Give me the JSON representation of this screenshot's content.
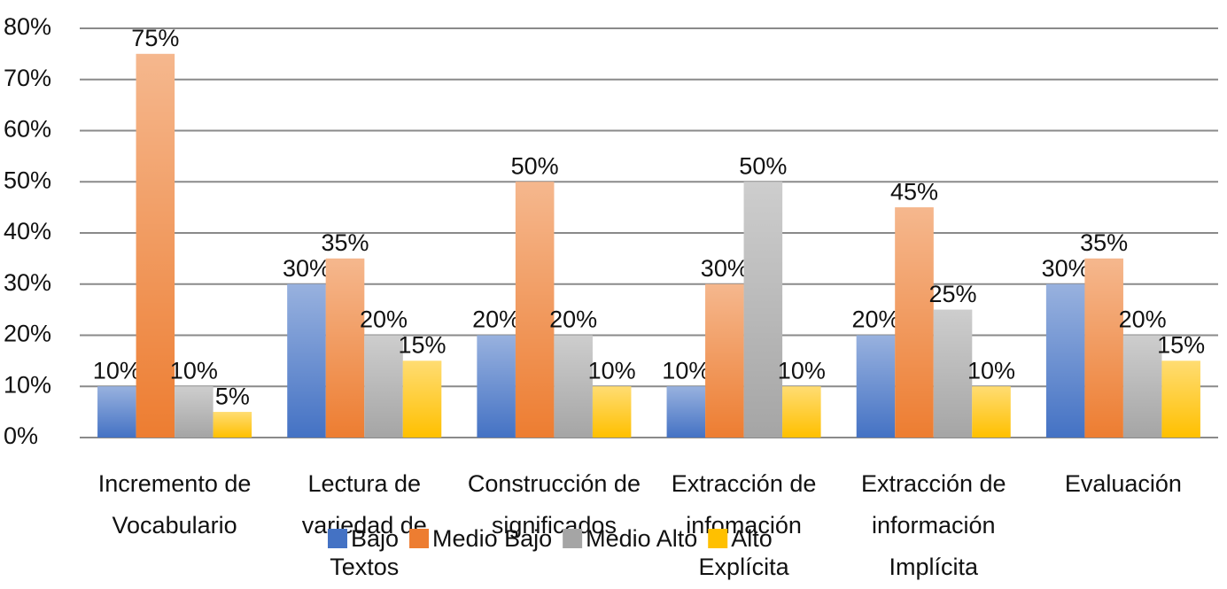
{
  "chart_data": {
    "type": "bar",
    "categories": [
      "Incremento de Vocabulario",
      "Lectura de variedad de Textos",
      "Construcción de significados",
      "Extracción de infomación Explícita",
      "Extracción de información Implícita",
      "Evaluación"
    ],
    "series": [
      {
        "name": "Bajo",
        "color": "#4472c4",
        "values": [
          10,
          30,
          20,
          10,
          20,
          30
        ],
        "value_labels": [
          "10%",
          "30%",
          "20%",
          "10%",
          "20%",
          "30%"
        ]
      },
      {
        "name": "Medio Bajo",
        "color": "#ed7d31",
        "values": [
          75,
          35,
          50,
          30,
          45,
          35
        ],
        "value_labels": [
          "75%",
          "35%",
          "50%",
          "30%",
          "45%",
          "35%"
        ]
      },
      {
        "name": "Medio Alto",
        "color": "#a5a5a5",
        "values": [
          10,
          20,
          20,
          50,
          25,
          20
        ],
        "value_labels": [
          "10%",
          "20%",
          "20%",
          "50%",
          "25%",
          "20%"
        ]
      },
      {
        "name": "Alto",
        "color": "#ffc000",
        "values": [
          5,
          15,
          10,
          10,
          10,
          15
        ],
        "value_labels": [
          "5%",
          "15%",
          "10%",
          "10%",
          "10%",
          "15%"
        ]
      }
    ],
    "ylim": [
      0,
      80
    ],
    "yticks": [
      {
        "value": 0,
        "label": "0%"
      },
      {
        "value": 10,
        "label": "10%"
      },
      {
        "value": 20,
        "label": "20%"
      },
      {
        "value": 30,
        "label": "30%"
      },
      {
        "value": 40,
        "label": "40%"
      },
      {
        "value": 50,
        "label": "50%"
      },
      {
        "value": 60,
        "label": "60%"
      },
      {
        "value": 70,
        "label": "70%"
      },
      {
        "value": 80,
        "label": "80%"
      }
    ],
    "grid": true,
    "legend": "bottom"
  }
}
